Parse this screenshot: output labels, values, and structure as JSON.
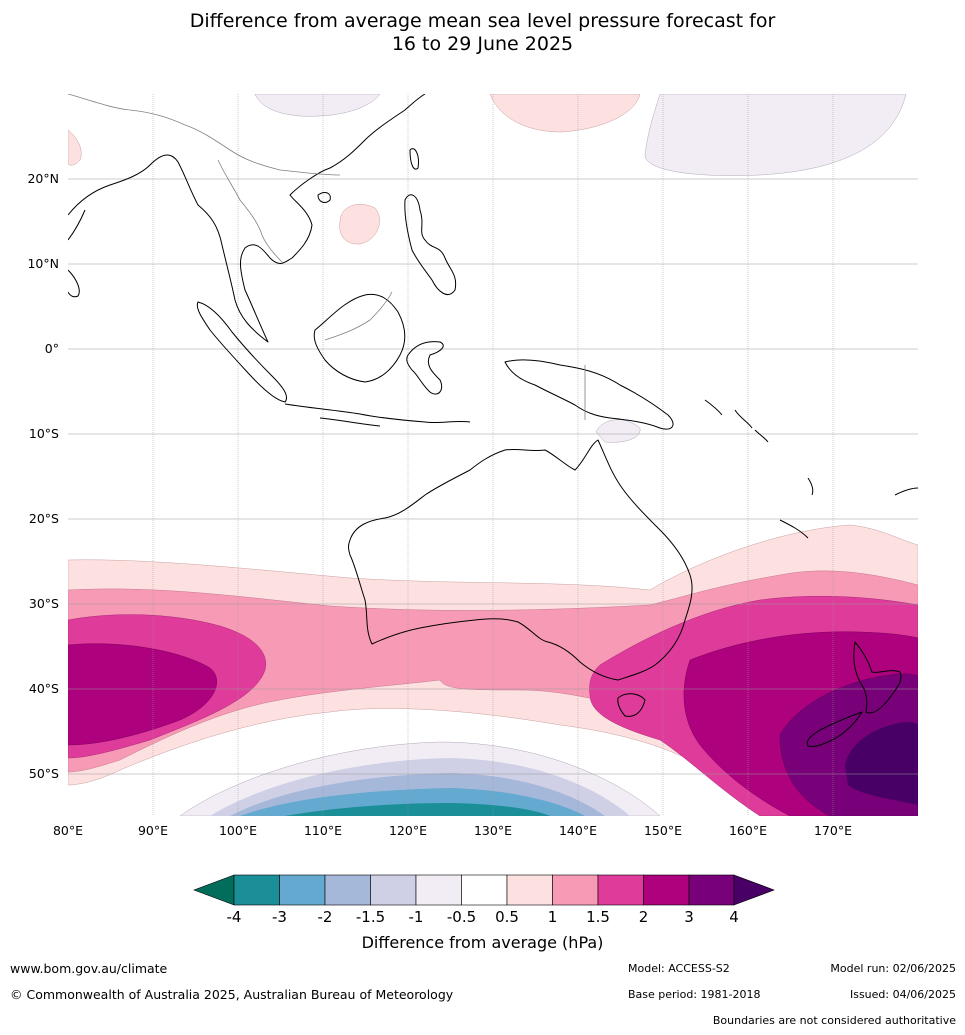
{
  "title": {
    "line1": "Difference from average mean sea level pressure forecast for",
    "line2": "16 to 29 June 2025"
  },
  "map": {
    "lat_labels": [
      "20°N",
      "10°N",
      "0°",
      "10°S",
      "20°S",
      "30°S",
      "40°S",
      "50°S"
    ],
    "lon_labels": [
      "80°E",
      "90°E",
      "100°E",
      "110°E",
      "120°E",
      "130°E",
      "140°E",
      "150°E",
      "160°E",
      "170°E"
    ],
    "colors": {
      "land_outline": "#000000",
      "borders": "#808080",
      "grid": "#9a9a9a"
    }
  },
  "colorbar": {
    "label": "Difference from average (hPa)",
    "ticks": [
      "-4",
      "-3",
      "-2",
      "-1.5",
      "-1",
      "-0.5",
      "0.5",
      "1",
      "1.5",
      "2",
      "3",
      "4"
    ],
    "bins": [
      "#1b8f97",
      "#63a9d0",
      "#a6b8da",
      "#cfd0e6",
      "#f2ecf4",
      "#ffffff",
      "#fde0e0",
      "#f79ab6",
      "#de3b9a",
      "#ad017e",
      "#780078"
    ],
    "under_color": "#036d5c",
    "over_color": "#490066"
  },
  "footer": {
    "website": "www.bom.gov.au/climate",
    "copyright": "© Commonwealth of Australia 2025, Australian Bureau of Meteorology",
    "model": "Model: ACCESS-S2",
    "base_period": "Base period: 1981-2018",
    "model_run": "Model run: 02/06/2025",
    "issued": "Issued: 04/06/2025",
    "disclaimer": "Boundaries are not considered authoritative"
  }
}
